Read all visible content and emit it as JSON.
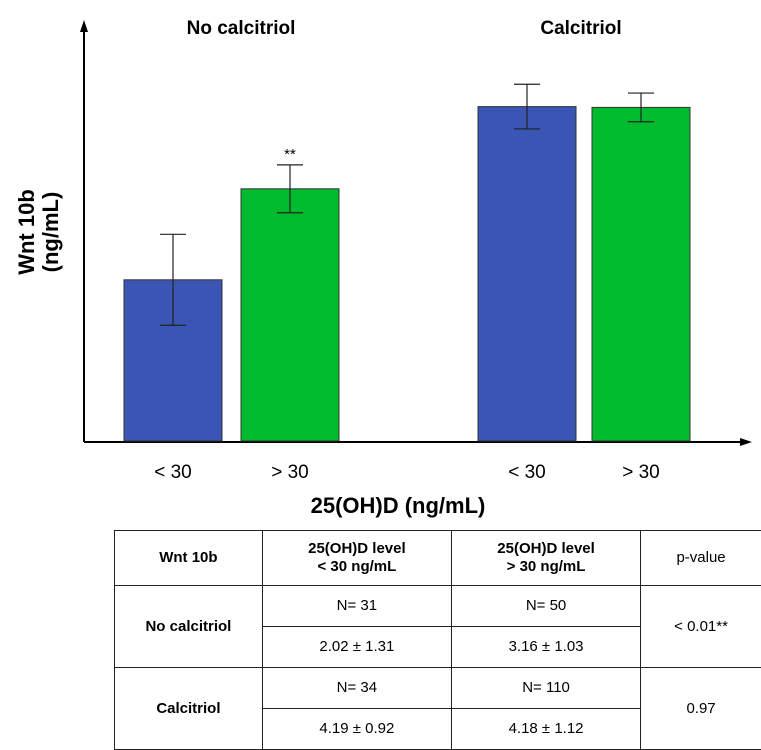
{
  "chart_data": {
    "type": "bar",
    "ylabel_line1": "Wnt 10b",
    "ylabel_line2": "(ng/mL)",
    "xlabel": "25(OH)D (ng/mL)",
    "categories": [
      "< 30",
      "> 30"
    ],
    "groups": [
      {
        "title": "No calcitriol",
        "bars": [
          {
            "category": "< 30",
            "value": 2.02,
            "error": 0.57,
            "color": "#3a55b4"
          },
          {
            "category": "> 30",
            "value": 3.16,
            "error": 0.3,
            "color": "#00bb2e",
            "annotation": "**"
          }
        ]
      },
      {
        "title": "Calcitriol",
        "bars": [
          {
            "category": "< 30",
            "value": 4.19,
            "error": 0.28,
            "color": "#3a55b4"
          },
          {
            "category": "> 30",
            "value": 4.18,
            "error": 0.18,
            "color": "#00bb2e"
          }
        ]
      }
    ],
    "ylim": [
      0,
      5.2
    ],
    "grid": false,
    "legend": "none"
  },
  "table": {
    "header": [
      "Wnt 10b",
      "25(OH)D level",
      "< 30 ng/mL",
      "25(OH)D level",
      "> 30 ng/mL",
      "p-value"
    ],
    "rows": [
      {
        "label": "No calcitriol",
        "n_low": "N= 31",
        "n_high": "N= 50",
        "mean_low": "2.02 ± 1.31",
        "mean_high": "3.16 ± 1.03",
        "p": "< 0.01**"
      },
      {
        "label": "Calcitriol",
        "n_low": "N= 34",
        "n_high": "N= 110",
        "mean_low": "4.19 ± 0.92",
        "mean_high": "4.18 ± 1.12",
        "p": "0.97"
      }
    ]
  }
}
